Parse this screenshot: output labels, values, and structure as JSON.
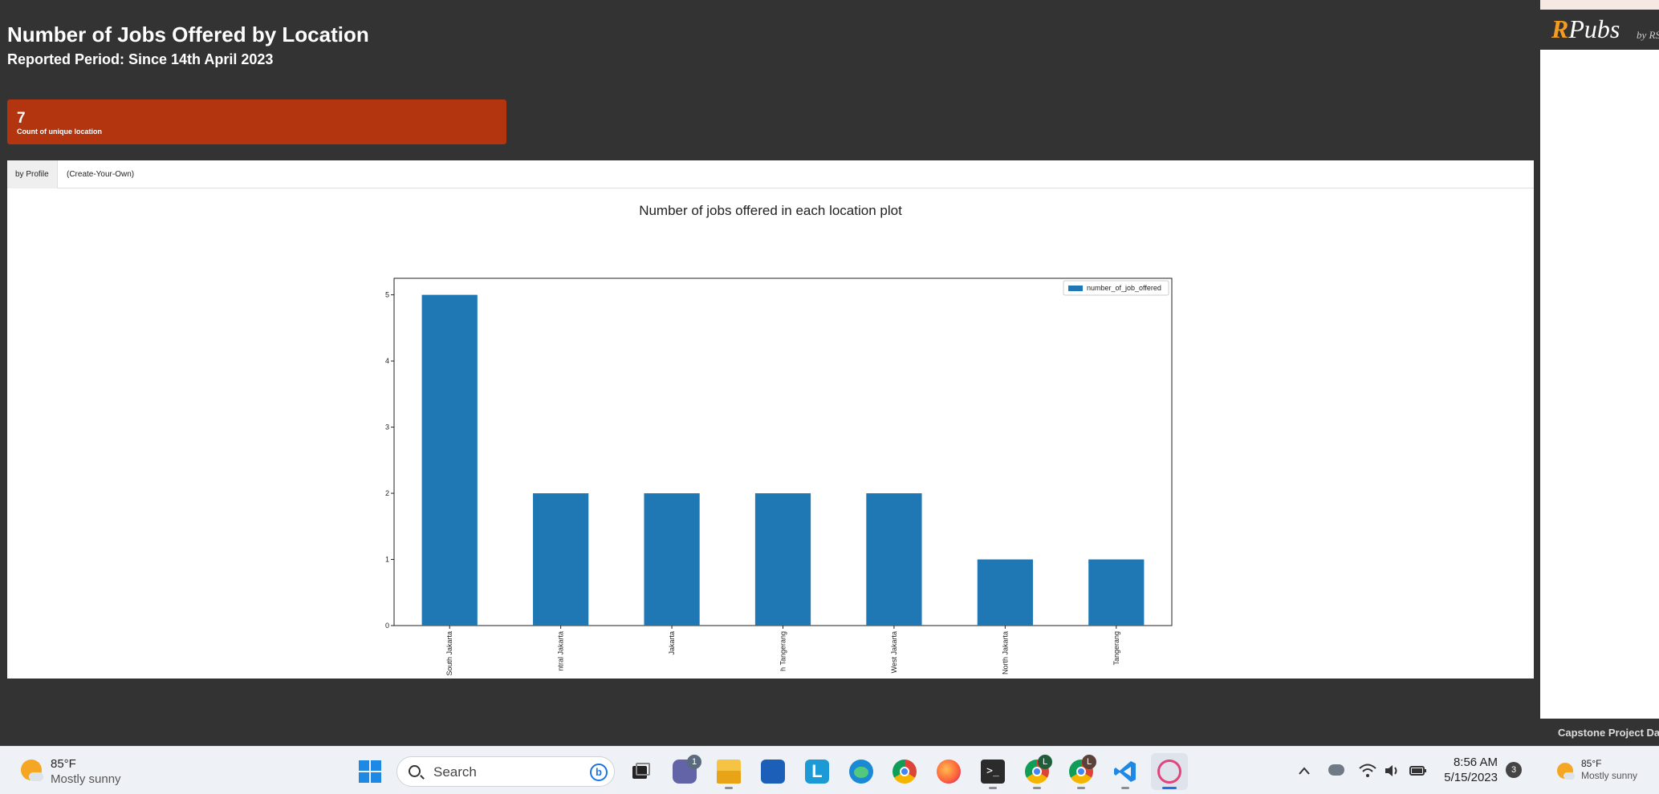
{
  "dashboard": {
    "title": "Number of Jobs Offered by Location",
    "subtitle": "Reported Period: Since 14th April 2023",
    "value_box": {
      "value": "7",
      "caption": "Count of unique location",
      "color": "#b23510"
    }
  },
  "tabs": [
    {
      "label": "by Profile",
      "active": true
    },
    {
      "label": "(Create-Your-Own)",
      "active": false
    }
  ],
  "chart_title": "Number of jobs offered in each location plot",
  "chart_data": {
    "type": "bar",
    "title": "Number of jobs offered in each location plot",
    "categories": [
      "South Jakarta",
      "Central Jakarta",
      "Jakarta",
      "North Tangerang",
      "West Jakarta",
      "North Jakarta",
      "Tangerang"
    ],
    "category_labels_visible": [
      "South Jakarta",
      "ntral Jakarta",
      "Jakarta",
      "h Tangerang",
      "West Jakarta",
      "North Jakarta",
      "Tangerang"
    ],
    "series": [
      {
        "name": "number_of_job_offered",
        "values": [
          5,
          2,
          2,
          2,
          2,
          1,
          1
        ],
        "color": "#1f77b4"
      }
    ],
    "yticks": [
      "0",
      "1",
      "2",
      "3",
      "4",
      "5"
    ],
    "ylim": [
      0,
      5.25
    ],
    "xlabel": "",
    "ylabel": "",
    "legend": "top-right",
    "grid": false
  },
  "rpubs": {
    "logo_r": "R",
    "logo_rest": "Pubs",
    "by_text": "by RS",
    "footer_text": "Capstone Project Da"
  },
  "taskbar": {
    "weather_left": {
      "temp": "85°F",
      "condition": "Mostly sunny"
    },
    "search_label": "Search",
    "teams_badge": "1",
    "chrome_badge_1": "L",
    "chrome_badge_2": "L",
    "launcher_letter": "L",
    "time": "8:56 AM",
    "date": "5/15/2023",
    "notifications": "3",
    "weather_right": {
      "temp": "85°F",
      "condition": "Mostly sunny"
    }
  }
}
